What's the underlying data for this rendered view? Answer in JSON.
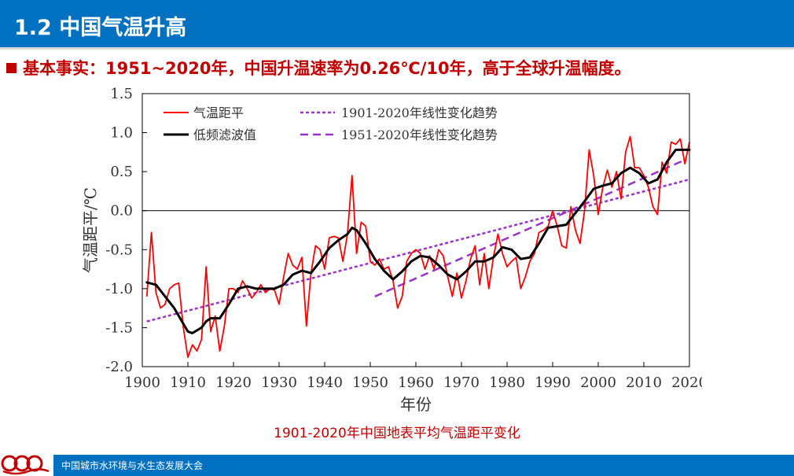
{
  "header": {
    "title": "1.2 中国气温升高"
  },
  "bullet": {
    "text": "基本事实：1951~2020年，中国升温速率为0.26℃/10年，高于全球升温幅度。"
  },
  "figure": {
    "caption": "1901-2020年中国地表平均气温距平变化"
  },
  "footer": {
    "org": "中国城市水环境与水生态发展大会"
  },
  "colors": {
    "accent_blue": "#0070c0",
    "accent_red": "#c00000",
    "anomaly_line": "#ff0000",
    "filter_line": "#000000",
    "trend_line": "#9933cc"
  },
  "chart_data": {
    "type": "line",
    "xlabel": "年份",
    "ylabel": "气温距平/℃",
    "xlim": [
      1900,
      2020
    ],
    "ylim": [
      -2.0,
      1.5
    ],
    "xticks": [
      1900,
      1910,
      1920,
      1930,
      1940,
      1950,
      1960,
      1970,
      1980,
      1990,
      2000,
      2010,
      2020
    ],
    "yticks": [
      -2.0,
      -1.5,
      -1.0,
      -0.5,
      0.0,
      0.5,
      1.0,
      1.5
    ],
    "ytick_labels": [
      "-2.0",
      "-1.5",
      "-1.0",
      "-0.5",
      "0.0",
      "0.5",
      "1.0",
      "1.5"
    ],
    "zero_line": true,
    "legend": [
      "气温距平",
      "低频滤波值",
      "1901-2020年线性变化趋势",
      "1951-2020年线性变化趋势"
    ],
    "legend_position": "top-left",
    "series": [
      {
        "name": "气温距平",
        "style": "red-solid",
        "x": [
          1901,
          1902,
          1903,
          1904,
          1905,
          1906,
          1907,
          1908,
          1909,
          1910,
          1911,
          1912,
          1913,
          1914,
          1915,
          1916,
          1917,
          1918,
          1919,
          1920,
          1921,
          1922,
          1923,
          1924,
          1925,
          1926,
          1927,
          1928,
          1929,
          1930,
          1931,
          1932,
          1933,
          1934,
          1935,
          1936,
          1937,
          1938,
          1939,
          1940,
          1941,
          1942,
          1943,
          1944,
          1945,
          1946,
          1947,
          1948,
          1949,
          1950,
          1951,
          1952,
          1953,
          1954,
          1955,
          1956,
          1957,
          1958,
          1959,
          1960,
          1961,
          1962,
          1963,
          1964,
          1965,
          1966,
          1967,
          1968,
          1969,
          1970,
          1971,
          1972,
          1973,
          1974,
          1975,
          1976,
          1977,
          1978,
          1979,
          1980,
          1981,
          1982,
          1983,
          1984,
          1985,
          1986,
          1987,
          1988,
          1989,
          1990,
          1991,
          1992,
          1993,
          1994,
          1995,
          1996,
          1997,
          1998,
          1999,
          2000,
          2001,
          2002,
          2003,
          2004,
          2005,
          2006,
          2007,
          2008,
          2009,
          2010,
          2011,
          2012,
          2013,
          2014,
          2015,
          2016,
          2017,
          2018,
          2019,
          2020
        ],
        "y": [
          -1.1,
          -0.28,
          -1.05,
          -1.25,
          -1.2,
          -1.0,
          -0.95,
          -0.93,
          -1.5,
          -1.88,
          -1.72,
          -1.8,
          -1.65,
          -0.72,
          -1.55,
          -1.35,
          -1.8,
          -1.48,
          -1.0,
          -1.0,
          -1.05,
          -0.9,
          -1.0,
          -1.12,
          -1.05,
          -0.95,
          -1.05,
          -1.0,
          -1.02,
          -1.2,
          -0.85,
          -0.55,
          -0.7,
          -0.75,
          -0.6,
          -1.48,
          -0.8,
          -0.45,
          -0.5,
          -0.75,
          -0.35,
          -0.33,
          -0.35,
          -0.65,
          -0.3,
          0.45,
          -0.55,
          -0.15,
          -0.2,
          -0.65,
          -0.7,
          -0.62,
          -0.75,
          -0.72,
          -0.9,
          -1.25,
          -1.1,
          -0.65,
          -0.55,
          -0.5,
          -0.55,
          -0.75,
          -0.58,
          -0.75,
          -0.5,
          -0.58,
          -0.85,
          -1.1,
          -0.8,
          -1.12,
          -0.9,
          -0.62,
          -0.45,
          -0.95,
          -0.55,
          -1.0,
          -0.6,
          -0.3,
          -0.55,
          -0.72,
          -0.65,
          -0.6,
          -1.0,
          -0.85,
          -0.65,
          -0.55,
          -0.28,
          -0.25,
          -0.2,
          0.0,
          -0.2,
          -0.45,
          -0.48,
          0.05,
          -0.25,
          -0.42,
          0.0,
          0.78,
          0.45,
          -0.05,
          0.3,
          0.52,
          0.3,
          0.5,
          0.15,
          0.75,
          0.95,
          0.55,
          0.55,
          0.45,
          0.3,
          0.05,
          -0.05,
          0.62,
          0.48,
          0.88,
          0.85,
          0.92,
          0.6,
          0.88
        ]
      },
      {
        "name": "低频滤波值",
        "style": "black-thick",
        "x": [
          1901,
          1903,
          1905,
          1907,
          1909,
          1910,
          1911,
          1913,
          1914,
          1915,
          1917,
          1919,
          1921,
          1923,
          1925,
          1927,
          1929,
          1931,
          1933,
          1935,
          1937,
          1939,
          1941,
          1943,
          1945,
          1946,
          1947,
          1949,
          1951,
          1953,
          1955,
          1957,
          1959,
          1961,
          1963,
          1965,
          1967,
          1969,
          1971,
          1973,
          1975,
          1977,
          1979,
          1981,
          1983,
          1985,
          1987,
          1989,
          1991,
          1993,
          1995,
          1997,
          1999,
          2001,
          2003,
          2005,
          2007,
          2009,
          2011,
          2013,
          2015,
          2017,
          2019,
          2020
        ],
        "y": [
          -0.92,
          -0.95,
          -1.1,
          -1.25,
          -1.45,
          -1.55,
          -1.57,
          -1.5,
          -1.42,
          -1.38,
          -1.38,
          -1.2,
          -1.0,
          -0.97,
          -1.0,
          -1.0,
          -1.0,
          -0.95,
          -0.82,
          -0.77,
          -0.8,
          -0.65,
          -0.48,
          -0.38,
          -0.3,
          -0.22,
          -0.25,
          -0.42,
          -0.62,
          -0.77,
          -0.88,
          -0.78,
          -0.65,
          -0.58,
          -0.6,
          -0.7,
          -0.82,
          -0.88,
          -0.78,
          -0.65,
          -0.65,
          -0.6,
          -0.47,
          -0.5,
          -0.62,
          -0.6,
          -0.42,
          -0.22,
          -0.2,
          -0.18,
          -0.03,
          0.12,
          0.28,
          0.32,
          0.35,
          0.48,
          0.55,
          0.48,
          0.35,
          0.4,
          0.62,
          0.78,
          0.78,
          0.78
        ]
      },
      {
        "name": "1901-2020年线性变化趋势",
        "style": "purple-short-dash",
        "x": [
          1901,
          2020
        ],
        "y": [
          -1.42,
          0.4
        ]
      },
      {
        "name": "1951-2020年线性变化趋势",
        "style": "purple-long-dash",
        "x": [
          1951,
          2019
        ],
        "y": [
          -1.1,
          0.65
        ]
      }
    ]
  }
}
